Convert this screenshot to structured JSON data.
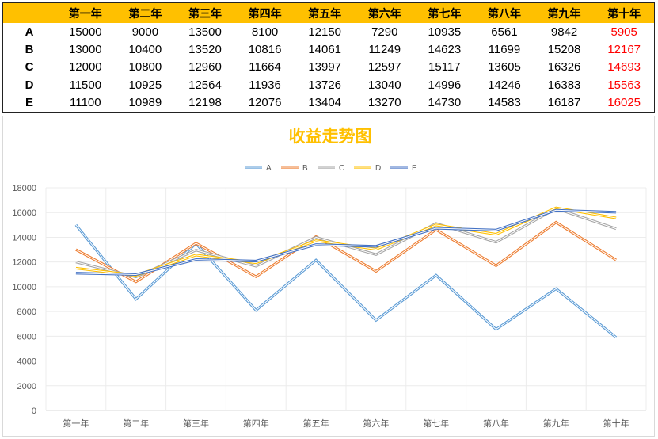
{
  "table": {
    "headers": [
      "第一年",
      "第二年",
      "第三年",
      "第四年",
      "第五年",
      "第六年",
      "第七年",
      "第八年",
      "第九年",
      "第十年"
    ],
    "rows": [
      {
        "label": "A",
        "values": [
          "15000",
          "9000",
          "13500",
          "8100",
          "12150",
          "7290",
          "10935",
          "6561",
          "9842",
          "5905"
        ]
      },
      {
        "label": "B",
        "values": [
          "13000",
          "10400",
          "13520",
          "10816",
          "14061",
          "11249",
          "14623",
          "11699",
          "15208",
          "12167"
        ]
      },
      {
        "label": "C",
        "values": [
          "12000",
          "10800",
          "12960",
          "11664",
          "13997",
          "12597",
          "15117",
          "13605",
          "16326",
          "14693"
        ]
      },
      {
        "label": "D",
        "values": [
          "11500",
          "10925",
          "12564",
          "11936",
          "13726",
          "13040",
          "14996",
          "14246",
          "16383",
          "15563"
        ]
      },
      {
        "label": "E",
        "values": [
          "11100",
          "10989",
          "12198",
          "12076",
          "13404",
          "13270",
          "14730",
          "14583",
          "16187",
          "16025"
        ]
      }
    ]
  },
  "chart_data": {
    "type": "line",
    "title": "收益走势图",
    "categories": [
      "第一年",
      "第二年",
      "第三年",
      "第四年",
      "第五年",
      "第六年",
      "第七年",
      "第八年",
      "第九年",
      "第十年"
    ],
    "ylim": [
      0,
      18000
    ],
    "yticks": [
      "0",
      "2000",
      "4000",
      "6000",
      "8000",
      "10000",
      "12000",
      "14000",
      "16000",
      "18000"
    ],
    "grid": true,
    "legend_position": "top",
    "series": [
      {
        "name": "A",
        "color": "#5B9BD5",
        "values": [
          15000,
          9000,
          13500,
          8100,
          12150,
          7290,
          10935,
          6561,
          9842,
          5905
        ]
      },
      {
        "name": "B",
        "color": "#ED7D31",
        "values": [
          13000,
          10400,
          13520,
          10816,
          14061,
          11249,
          14623,
          11699,
          15208,
          12167
        ]
      },
      {
        "name": "C",
        "color": "#A5A5A5",
        "values": [
          12000,
          10800,
          12960,
          11664,
          13997,
          12597,
          15117,
          13605,
          16326,
          14693
        ]
      },
      {
        "name": "D",
        "color": "#FFC000",
        "values": [
          11500,
          10925,
          12564,
          11936,
          13726,
          13040,
          14996,
          14246,
          16383,
          15563
        ]
      },
      {
        "name": "E",
        "color": "#4472C4",
        "values": [
          11100,
          10989,
          12198,
          12076,
          13404,
          13270,
          14730,
          14583,
          16187,
          16025
        ]
      }
    ],
    "title_color": "#FFC000"
  }
}
